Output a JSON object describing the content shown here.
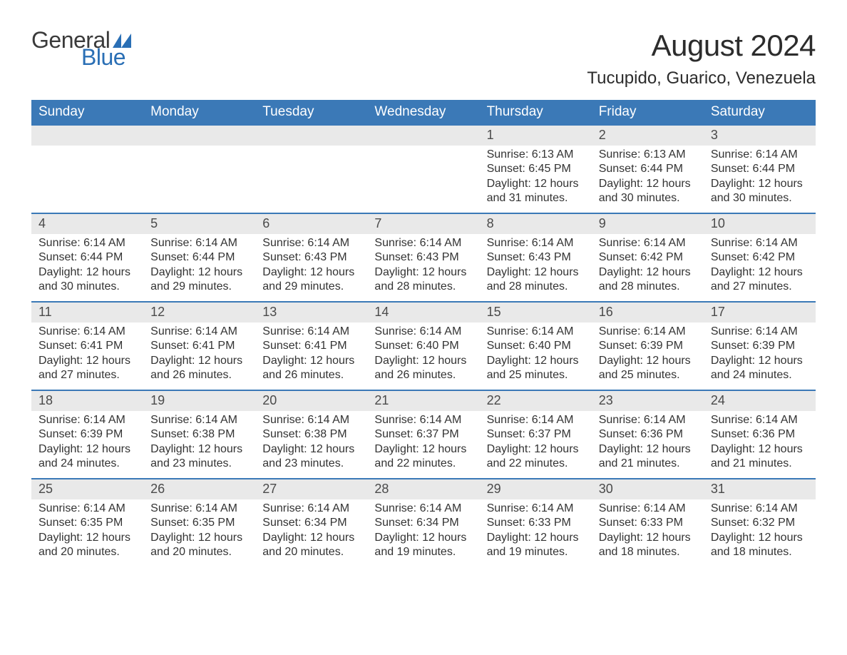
{
  "logo": {
    "text1": "General",
    "text2": "Blue",
    "accent_color": "#2a6fb5",
    "text_color": "#3a3a3a"
  },
  "title": "August 2024",
  "location": "Tucupido, Guarico, Venezuela",
  "colors": {
    "header_bg": "#3b79b7",
    "header_text": "#ffffff",
    "daynum_bg": "#e9e9e9",
    "daynum_text": "#4a4a4a",
    "week_border": "#3b79b7",
    "body_text": "#333333",
    "page_bg": "#ffffff"
  },
  "fonts": {
    "title_size_pt": 32,
    "location_size_pt": 18,
    "header_size_pt": 14,
    "body_size_pt": 12
  },
  "calendar": {
    "day_headers": [
      "Sunday",
      "Monday",
      "Tuesday",
      "Wednesday",
      "Thursday",
      "Friday",
      "Saturday"
    ],
    "weeks": [
      [
        null,
        null,
        null,
        null,
        {
          "num": "1",
          "sunrise": "Sunrise: 6:13 AM",
          "sunset": "Sunset: 6:45 PM",
          "daylight1": "Daylight: 12 hours",
          "daylight2": "and 31 minutes."
        },
        {
          "num": "2",
          "sunrise": "Sunrise: 6:13 AM",
          "sunset": "Sunset: 6:44 PM",
          "daylight1": "Daylight: 12 hours",
          "daylight2": "and 30 minutes."
        },
        {
          "num": "3",
          "sunrise": "Sunrise: 6:14 AM",
          "sunset": "Sunset: 6:44 PM",
          "daylight1": "Daylight: 12 hours",
          "daylight2": "and 30 minutes."
        }
      ],
      [
        {
          "num": "4",
          "sunrise": "Sunrise: 6:14 AM",
          "sunset": "Sunset: 6:44 PM",
          "daylight1": "Daylight: 12 hours",
          "daylight2": "and 30 minutes."
        },
        {
          "num": "5",
          "sunrise": "Sunrise: 6:14 AM",
          "sunset": "Sunset: 6:44 PM",
          "daylight1": "Daylight: 12 hours",
          "daylight2": "and 29 minutes."
        },
        {
          "num": "6",
          "sunrise": "Sunrise: 6:14 AM",
          "sunset": "Sunset: 6:43 PM",
          "daylight1": "Daylight: 12 hours",
          "daylight2": "and 29 minutes."
        },
        {
          "num": "7",
          "sunrise": "Sunrise: 6:14 AM",
          "sunset": "Sunset: 6:43 PM",
          "daylight1": "Daylight: 12 hours",
          "daylight2": "and 28 minutes."
        },
        {
          "num": "8",
          "sunrise": "Sunrise: 6:14 AM",
          "sunset": "Sunset: 6:43 PM",
          "daylight1": "Daylight: 12 hours",
          "daylight2": "and 28 minutes."
        },
        {
          "num": "9",
          "sunrise": "Sunrise: 6:14 AM",
          "sunset": "Sunset: 6:42 PM",
          "daylight1": "Daylight: 12 hours",
          "daylight2": "and 28 minutes."
        },
        {
          "num": "10",
          "sunrise": "Sunrise: 6:14 AM",
          "sunset": "Sunset: 6:42 PM",
          "daylight1": "Daylight: 12 hours",
          "daylight2": "and 27 minutes."
        }
      ],
      [
        {
          "num": "11",
          "sunrise": "Sunrise: 6:14 AM",
          "sunset": "Sunset: 6:41 PM",
          "daylight1": "Daylight: 12 hours",
          "daylight2": "and 27 minutes."
        },
        {
          "num": "12",
          "sunrise": "Sunrise: 6:14 AM",
          "sunset": "Sunset: 6:41 PM",
          "daylight1": "Daylight: 12 hours",
          "daylight2": "and 26 minutes."
        },
        {
          "num": "13",
          "sunrise": "Sunrise: 6:14 AM",
          "sunset": "Sunset: 6:41 PM",
          "daylight1": "Daylight: 12 hours",
          "daylight2": "and 26 minutes."
        },
        {
          "num": "14",
          "sunrise": "Sunrise: 6:14 AM",
          "sunset": "Sunset: 6:40 PM",
          "daylight1": "Daylight: 12 hours",
          "daylight2": "and 26 minutes."
        },
        {
          "num": "15",
          "sunrise": "Sunrise: 6:14 AM",
          "sunset": "Sunset: 6:40 PM",
          "daylight1": "Daylight: 12 hours",
          "daylight2": "and 25 minutes."
        },
        {
          "num": "16",
          "sunrise": "Sunrise: 6:14 AM",
          "sunset": "Sunset: 6:39 PM",
          "daylight1": "Daylight: 12 hours",
          "daylight2": "and 25 minutes."
        },
        {
          "num": "17",
          "sunrise": "Sunrise: 6:14 AM",
          "sunset": "Sunset: 6:39 PM",
          "daylight1": "Daylight: 12 hours",
          "daylight2": "and 24 minutes."
        }
      ],
      [
        {
          "num": "18",
          "sunrise": "Sunrise: 6:14 AM",
          "sunset": "Sunset: 6:39 PM",
          "daylight1": "Daylight: 12 hours",
          "daylight2": "and 24 minutes."
        },
        {
          "num": "19",
          "sunrise": "Sunrise: 6:14 AM",
          "sunset": "Sunset: 6:38 PM",
          "daylight1": "Daylight: 12 hours",
          "daylight2": "and 23 minutes."
        },
        {
          "num": "20",
          "sunrise": "Sunrise: 6:14 AM",
          "sunset": "Sunset: 6:38 PM",
          "daylight1": "Daylight: 12 hours",
          "daylight2": "and 23 minutes."
        },
        {
          "num": "21",
          "sunrise": "Sunrise: 6:14 AM",
          "sunset": "Sunset: 6:37 PM",
          "daylight1": "Daylight: 12 hours",
          "daylight2": "and 22 minutes."
        },
        {
          "num": "22",
          "sunrise": "Sunrise: 6:14 AM",
          "sunset": "Sunset: 6:37 PM",
          "daylight1": "Daylight: 12 hours",
          "daylight2": "and 22 minutes."
        },
        {
          "num": "23",
          "sunrise": "Sunrise: 6:14 AM",
          "sunset": "Sunset: 6:36 PM",
          "daylight1": "Daylight: 12 hours",
          "daylight2": "and 21 minutes."
        },
        {
          "num": "24",
          "sunrise": "Sunrise: 6:14 AM",
          "sunset": "Sunset: 6:36 PM",
          "daylight1": "Daylight: 12 hours",
          "daylight2": "and 21 minutes."
        }
      ],
      [
        {
          "num": "25",
          "sunrise": "Sunrise: 6:14 AM",
          "sunset": "Sunset: 6:35 PM",
          "daylight1": "Daylight: 12 hours",
          "daylight2": "and 20 minutes."
        },
        {
          "num": "26",
          "sunrise": "Sunrise: 6:14 AM",
          "sunset": "Sunset: 6:35 PM",
          "daylight1": "Daylight: 12 hours",
          "daylight2": "and 20 minutes."
        },
        {
          "num": "27",
          "sunrise": "Sunrise: 6:14 AM",
          "sunset": "Sunset: 6:34 PM",
          "daylight1": "Daylight: 12 hours",
          "daylight2": "and 20 minutes."
        },
        {
          "num": "28",
          "sunrise": "Sunrise: 6:14 AM",
          "sunset": "Sunset: 6:34 PM",
          "daylight1": "Daylight: 12 hours",
          "daylight2": "and 19 minutes."
        },
        {
          "num": "29",
          "sunrise": "Sunrise: 6:14 AM",
          "sunset": "Sunset: 6:33 PM",
          "daylight1": "Daylight: 12 hours",
          "daylight2": "and 19 minutes."
        },
        {
          "num": "30",
          "sunrise": "Sunrise: 6:14 AM",
          "sunset": "Sunset: 6:33 PM",
          "daylight1": "Daylight: 12 hours",
          "daylight2": "and 18 minutes."
        },
        {
          "num": "31",
          "sunrise": "Sunrise: 6:14 AM",
          "sunset": "Sunset: 6:32 PM",
          "daylight1": "Daylight: 12 hours",
          "daylight2": "and 18 minutes."
        }
      ]
    ]
  }
}
